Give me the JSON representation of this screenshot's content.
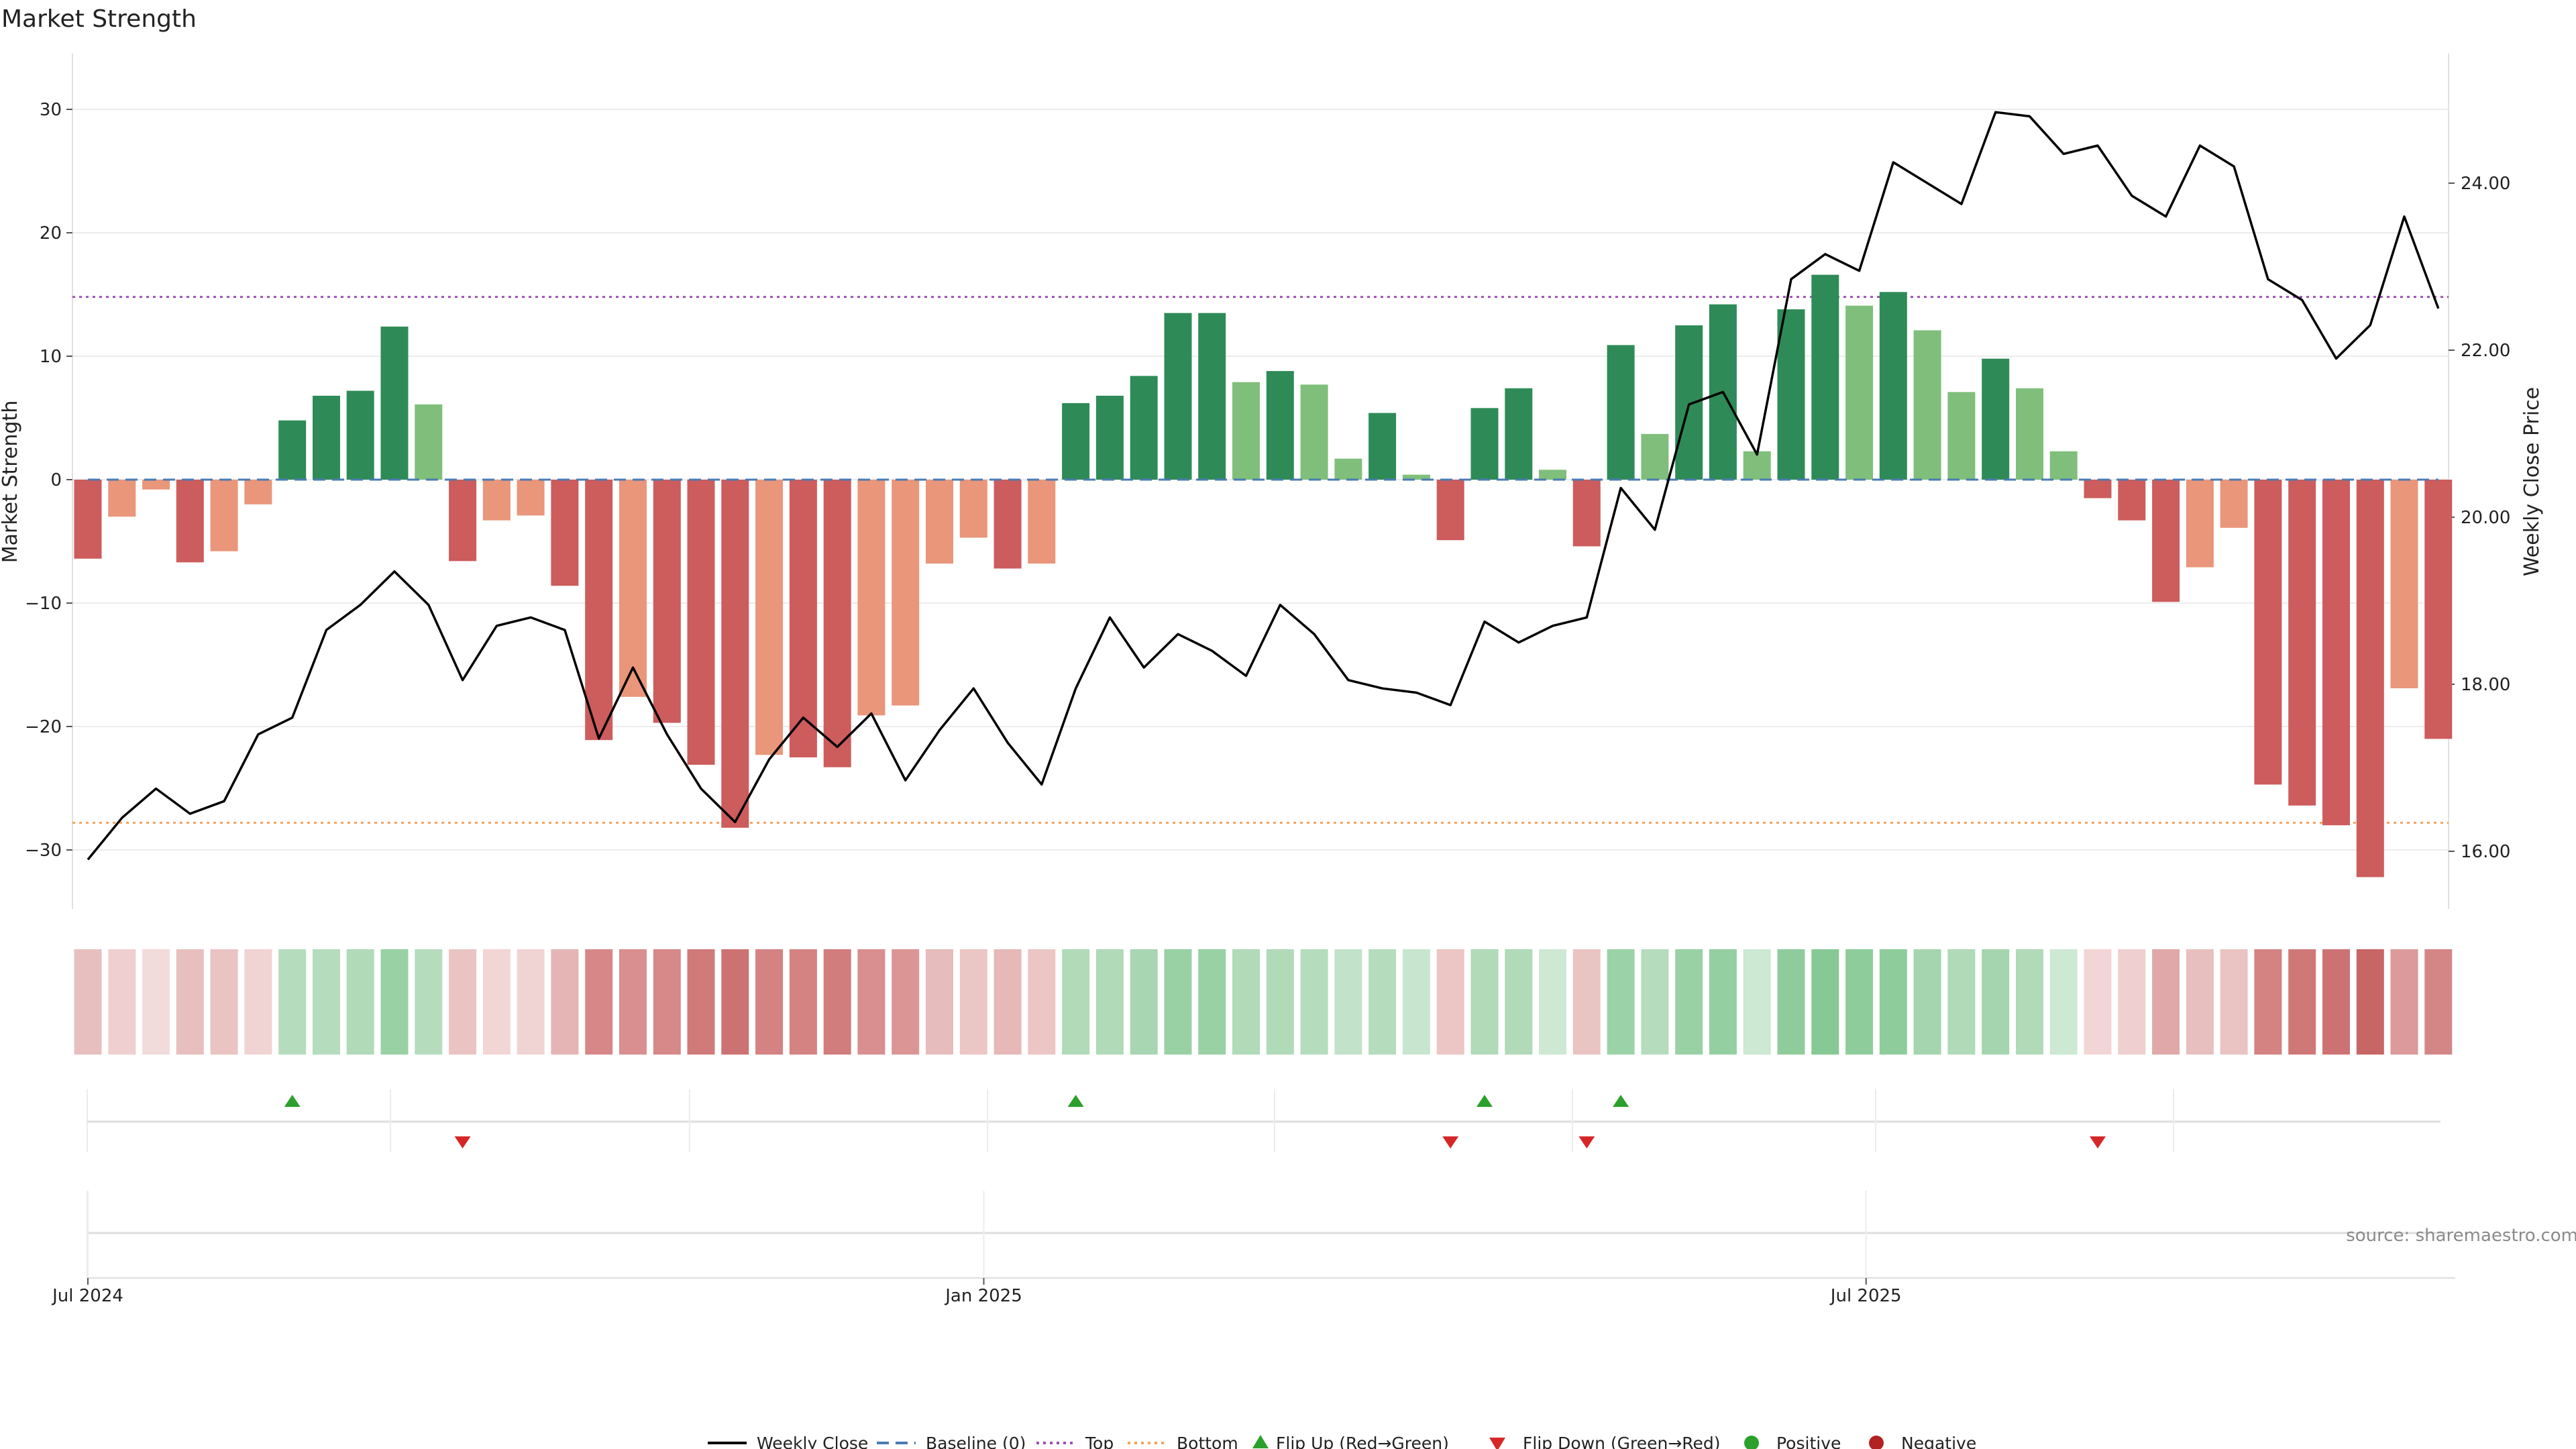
{
  "title": "Market Strength",
  "source": "source: sharemaestro.com",
  "colors": {
    "strong_pos": "#2e8b57",
    "weak_pos": "#7fbf7b",
    "strong_neg": "#cd5c5c",
    "weak_neg": "#e9967a",
    "close": "#000000",
    "baseline": "#4a7bb5",
    "top": "#a050b4",
    "bottom": "#f4a460",
    "flip_up": "#2ca02c",
    "flip_down": "#d62728",
    "positive": "#2ca02c",
    "negative": "#b22222"
  },
  "chart_data": {
    "type": "bar",
    "title": "Market Strength",
    "ylabel": "Market Strength",
    "y2label": "Weekly Close Price",
    "ylim": [
      -34,
      35
    ],
    "y2lim": [
      15.6,
      25.5
    ],
    "yticks": [
      30,
      20,
      10,
      0,
      -10,
      -20,
      -30
    ],
    "y2ticks": [
      "24.00",
      "22.00",
      "20.00",
      "18.00",
      "16.00"
    ],
    "xticks": [
      {
        "label": "Jul 2024",
        "index": 0
      },
      {
        "label": "Jan 2025",
        "index": 26.3
      },
      {
        "label": "Jul 2025",
        "index": 52.2
      }
    ],
    "top_line": 14.8,
    "bottom_line": -27.8,
    "baseline": 0,
    "strength": [
      -6.4,
      -3,
      -0.8,
      -6.7,
      -5.8,
      -2,
      4.8,
      6.8,
      7.2,
      12.4,
      6.1,
      -6.6,
      -3.3,
      -2.9,
      -8.6,
      -21.1,
      -17.6,
      -19.7,
      -23.1,
      -28.2,
      -22.3,
      -22.5,
      -23.3,
      -19.1,
      -18.3,
      -6.8,
      -4.7,
      -7.2,
      -6.8,
      6.2,
      6.8,
      8.4,
      13.5,
      13.5,
      7.9,
      8.8,
      7.7,
      1.7,
      5.4,
      0.4,
      -4.9,
      5.8,
      7.4,
      0.8,
      -5.4,
      10.9,
      3.7,
      12.5,
      14.2,
      2.3,
      13.8,
      16.6,
      14.1,
      15.2,
      12.1,
      7.1,
      9.8,
      7.4,
      2.3,
      -1.5,
      -3.3,
      -9.9,
      -7.1,
      -3.9,
      -24.7,
      -26.4,
      -28,
      -32.2,
      -16.9,
      -21
    ],
    "strength_type": [
      "sn",
      "wn",
      "wn",
      "sn",
      "wn",
      "wn",
      "sp",
      "sp",
      "sp",
      "sp",
      "wp",
      "sn",
      "wn",
      "wn",
      "sn",
      "sn",
      "wn",
      "sn",
      "sn",
      "sn",
      "wn",
      "sn",
      "sn",
      "wn",
      "wn",
      "wn",
      "wn",
      "sn",
      "wn",
      "sp",
      "sp",
      "sp",
      "sp",
      "sp",
      "wp",
      "sp",
      "wp",
      "wp",
      "sp",
      "wp",
      "sn",
      "sp",
      "sp",
      "wp",
      "sn",
      "sp",
      "wp",
      "sp",
      "sp",
      "wp",
      "sp",
      "sp",
      "wp",
      "sp",
      "wp",
      "wp",
      "sp",
      "wp",
      "wp",
      "sn",
      "sn",
      "sn",
      "wn",
      "wn",
      "sn",
      "sn",
      "sn",
      "sn",
      "wn",
      "sn"
    ],
    "weekly_close": [
      15.9,
      16.4,
      16.75,
      16.45,
      16.6,
      17.4,
      17.6,
      18.65,
      18.95,
      19.35,
      18.95,
      18.05,
      18.7,
      18.8,
      18.65,
      17.35,
      18.2,
      17.4,
      16.75,
      16.35,
      17.1,
      17.6,
      17.25,
      17.65,
      16.85,
      17.45,
      17.95,
      17.3,
      16.8,
      17.95,
      18.8,
      18.2,
      18.6,
      18.4,
      18.1,
      18.95,
      18.6,
      18.05,
      17.95,
      17.9,
      17.75,
      18.75,
      18.5,
      18.7,
      18.8,
      20.35,
      19.85,
      21.35,
      21.5,
      20.75,
      22.85,
      23.15,
      22.95,
      24.25,
      24,
      23.75,
      24.85,
      24.8,
      24.35,
      24.45,
      23.85,
      23.6,
      24.45,
      24.2,
      22.85,
      22.6,
      21.9,
      22.3,
      23.6,
      22.5
    ],
    "heat_colors": [
      "#e8bfbf",
      "#efcfcf",
      "#f2dbdb",
      "#e8bfbf",
      "#eac3c3",
      "#f0d3d3",
      "#b5dcbd",
      "#b5dcbd",
      "#b0dab8",
      "#99d1a5",
      "#b5dcbd",
      "#eac3c3",
      "#f2d5d5",
      "#f0d3d3",
      "#e5b5b5",
      "#d78787",
      "#d98f8f",
      "#d78888",
      "#d07a7a",
      "#cd7272",
      "#d48282",
      "#d48282",
      "#d17d7d",
      "#d98f8f",
      "#dc9595",
      "#e7bcbc",
      "#ecc5c5",
      "#e6b8b8",
      "#ecc5c5",
      "#b0dab8",
      "#b0dab8",
      "#a8d6b2",
      "#99d1a5",
      "#99d1a5",
      "#b0dab8",
      "#b0dab8",
      "#b5dcbd",
      "#c2e2c9",
      "#b5dcbd",
      "#c8e6cf",
      "#ecc5c5",
      "#b0dab8",
      "#b0dab8",
      "#cde8d3",
      "#eac3c3",
      "#9bd2a7",
      "#b5dcbd",
      "#99d1a5",
      "#94cfa1",
      "#cde8d3",
      "#8fcc9c",
      "#86c995",
      "#8fcc9c",
      "#8fcc9c",
      "#a4d5ae",
      "#b0dab8",
      "#a4d5ae",
      "#b0dab8",
      "#cde8d3",
      "#f2d5d5",
      "#efcfcf",
      "#e0a8a8",
      "#e8bfbf",
      "#eac3c3",
      "#d48282",
      "#cf7878",
      "#cd7272",
      "#c86565",
      "#dc9a9a",
      "#d48686"
    ],
    "flip_up": [
      6,
      29,
      41,
      45
    ],
    "flip_down": [
      11,
      40,
      44,
      59
    ],
    "legend": [
      "Weekly Close",
      "Baseline (0)",
      "Top",
      "Bottom",
      "Flip Up (Red→Green)",
      "Flip Down (Green→Red)",
      "Positive",
      "Negative"
    ]
  }
}
